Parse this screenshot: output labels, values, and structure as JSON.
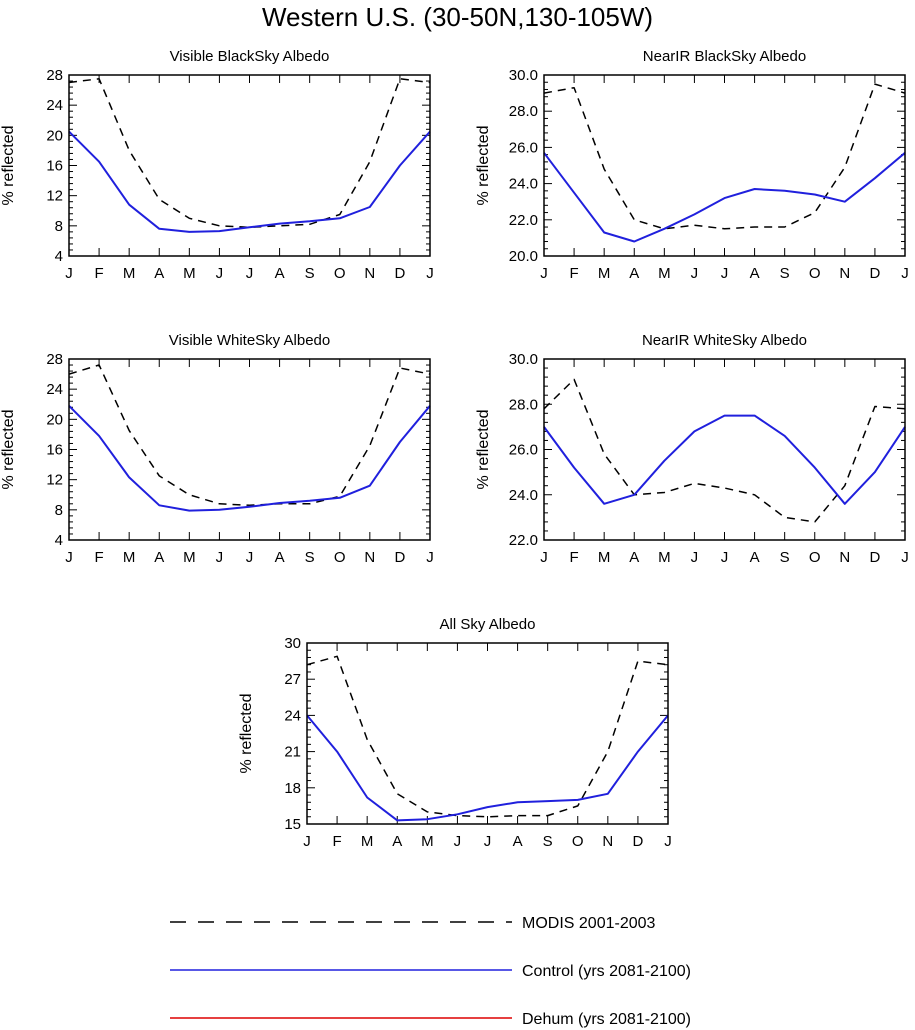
{
  "page": {
    "title": "Western U.S. (30-50N,130-105W)"
  },
  "colors": {
    "modis": "#000000",
    "control": "#2020dd",
    "dehum": "#dd0000"
  },
  "legend": {
    "items": [
      {
        "key": "modis",
        "label": "MODIS 2001-2003",
        "style": "dashed"
      },
      {
        "key": "control",
        "label": "Control (yrs 2081-2100)",
        "style": "solid"
      },
      {
        "key": "dehum",
        "label": "Dehum (yrs 2081-2100)",
        "style": "solid"
      }
    ]
  },
  "chart_data": [
    {
      "type": "line",
      "title": "Visible BlackSky Albedo",
      "ylabel": "% reflected",
      "categories": [
        "J",
        "F",
        "M",
        "A",
        "M",
        "J",
        "J",
        "A",
        "S",
        "O",
        "N",
        "D",
        "J"
      ],
      "ylim": [
        4,
        28
      ],
      "yticks": [
        "4",
        "8",
        "12",
        "16",
        "20",
        "24",
        "28"
      ],
      "yticks_values": [
        4,
        8,
        12,
        16,
        20,
        24,
        28
      ],
      "series": [
        {
          "name": "MODIS 2001-2003",
          "key": "modis",
          "values": [
            27.0,
            27.5,
            18.0,
            11.5,
            9.0,
            8.0,
            7.8,
            8.0,
            8.2,
            9.5,
            16.5,
            27.5,
            27.0
          ]
        },
        {
          "name": "Control (yrs 2081-2100)",
          "key": "control",
          "values": [
            20.5,
            16.5,
            10.8,
            7.6,
            7.2,
            7.3,
            7.8,
            8.3,
            8.6,
            9.0,
            10.5,
            16.0,
            20.5
          ]
        }
      ]
    },
    {
      "type": "line",
      "title": "NearIR BlackSky Albedo",
      "ylabel": "% reflected",
      "categories": [
        "J",
        "F",
        "M",
        "A",
        "M",
        "J",
        "J",
        "A",
        "S",
        "O",
        "N",
        "D",
        "J"
      ],
      "ylim": [
        20,
        30
      ],
      "yticks": [
        "20.0",
        "22.0",
        "24.0",
        "26.0",
        "28.0",
        "30.0"
      ],
      "yticks_values": [
        20,
        22,
        24,
        26,
        28,
        30
      ],
      "series": [
        {
          "name": "MODIS 2001-2003",
          "key": "modis",
          "values": [
            29.0,
            29.3,
            24.8,
            22.0,
            21.5,
            21.7,
            21.5,
            21.6,
            21.6,
            22.4,
            24.9,
            29.5,
            29.0
          ]
        },
        {
          "name": "Control (yrs 2081-2100)",
          "key": "control",
          "values": [
            25.7,
            23.5,
            21.3,
            20.8,
            21.5,
            22.3,
            23.2,
            23.7,
            23.6,
            23.4,
            23.0,
            24.3,
            25.7
          ]
        }
      ]
    },
    {
      "type": "line",
      "title": "Visible WhiteSky Albedo",
      "ylabel": "% reflected",
      "categories": [
        "J",
        "F",
        "M",
        "A",
        "M",
        "J",
        "J",
        "A",
        "S",
        "O",
        "N",
        "D",
        "J"
      ],
      "ylim": [
        4,
        28
      ],
      "yticks": [
        "4",
        "8",
        "12",
        "16",
        "20",
        "24",
        "28"
      ],
      "yticks_values": [
        4,
        8,
        12,
        16,
        20,
        24,
        28
      ],
      "series": [
        {
          "name": "MODIS 2001-2003",
          "key": "modis",
          "values": [
            26.0,
            27.2,
            18.5,
            12.5,
            10.0,
            8.8,
            8.6,
            8.8,
            8.8,
            9.8,
            16.5,
            26.8,
            26.0
          ]
        },
        {
          "name": "Control (yrs 2081-2100)",
          "key": "control",
          "values": [
            21.8,
            17.8,
            12.3,
            8.6,
            7.9,
            8.0,
            8.4,
            8.9,
            9.2,
            9.6,
            11.2,
            17.0,
            21.8
          ]
        }
      ]
    },
    {
      "type": "line",
      "title": "NearIR WhiteSky Albedo",
      "ylabel": "% reflected",
      "categories": [
        "J",
        "F",
        "M",
        "A",
        "M",
        "J",
        "J",
        "A",
        "S",
        "O",
        "N",
        "D",
        "J"
      ],
      "ylim": [
        22,
        30
      ],
      "yticks": [
        "22.0",
        "24.0",
        "26.0",
        "28.0",
        "30.0"
      ],
      "yticks_values": [
        22,
        24,
        26,
        28,
        30
      ],
      "series": [
        {
          "name": "MODIS 2001-2003",
          "key": "modis",
          "values": [
            27.8,
            29.1,
            25.8,
            24.0,
            24.1,
            24.5,
            24.3,
            24.0,
            23.0,
            22.8,
            24.4,
            27.9,
            27.8
          ]
        },
        {
          "name": "Control (yrs 2081-2100)",
          "key": "control",
          "values": [
            27.0,
            25.2,
            23.6,
            24.0,
            25.5,
            26.8,
            27.5,
            27.5,
            26.6,
            25.2,
            23.6,
            25.0,
            27.0
          ]
        }
      ]
    },
    {
      "type": "line",
      "title": "All Sky Albedo",
      "ylabel": "% reflected",
      "categories": [
        "J",
        "F",
        "M",
        "A",
        "M",
        "J",
        "J",
        "A",
        "S",
        "O",
        "N",
        "D",
        "J"
      ],
      "ylim": [
        15,
        30
      ],
      "yticks": [
        "15",
        "18",
        "21",
        "24",
        "27",
        "30"
      ],
      "yticks_values": [
        15,
        18,
        21,
        24,
        27,
        30
      ],
      "series": [
        {
          "name": "MODIS 2001-2003",
          "key": "modis",
          "values": [
            28.2,
            28.9,
            22.0,
            17.5,
            16.0,
            15.7,
            15.6,
            15.7,
            15.7,
            16.5,
            21.0,
            28.5,
            28.2
          ]
        },
        {
          "name": "Control (yrs 2081-2100)",
          "key": "control",
          "values": [
            24.0,
            21.0,
            17.2,
            15.3,
            15.4,
            15.8,
            16.4,
            16.8,
            16.9,
            17.0,
            17.5,
            21.0,
            24.0
          ]
        }
      ]
    }
  ]
}
